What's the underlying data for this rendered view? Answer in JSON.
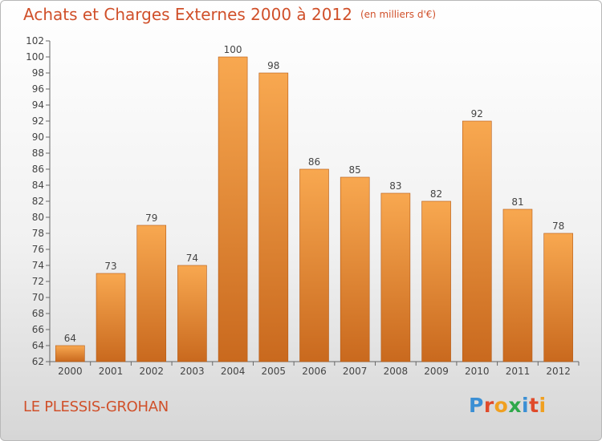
{
  "title": "Achats et Charges Externes 2000 à 2012",
  "unit_note": "(en milliers d'€)",
  "commune": "LE PLESSIS-GROHAN",
  "logo": {
    "text": "Proxiti",
    "letter_colors": [
      "#3b8fd4",
      "#e04a2a",
      "#f0a020",
      "#2fa84a",
      "#3b8fd4",
      "#e04a2a",
      "#f0a020"
    ]
  },
  "colors": {
    "title": "#d0502a",
    "bar_light": "#f6a552",
    "bar_dark": "#c8681e",
    "axis": "#555555"
  },
  "chart_data": {
    "type": "bar",
    "categories": [
      "2000",
      "2001",
      "2002",
      "2003",
      "2004",
      "2005",
      "2006",
      "2007",
      "2008",
      "2009",
      "2010",
      "2011",
      "2012"
    ],
    "values": [
      64,
      73,
      79,
      74,
      100,
      98,
      86,
      85,
      83,
      82,
      92,
      81,
      78
    ],
    "data_labels": [
      "64",
      "73",
      "79",
      "74",
      "100",
      "98",
      "86",
      "85",
      "83",
      "82",
      "92",
      "81",
      "78"
    ],
    "ylim": [
      62,
      102
    ],
    "ytick_step": 2,
    "title": "Achats et Charges Externes 2000 à 2012",
    "xlabel": "",
    "ylabel": "",
    "grid": false,
    "legend": "none"
  }
}
